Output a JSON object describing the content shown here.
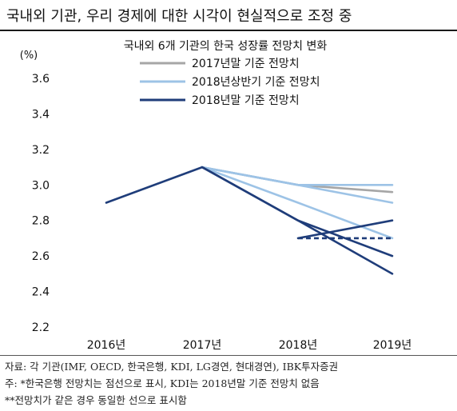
{
  "headline": "국내외 기관, 우리 경제에 대한 시각이 현실적으로 조정 중",
  "chart_data": {
    "type": "line",
    "title": "국내외 6개 기관의 한국 성장률 전망치 변화",
    "unit": "(%)",
    "categories": [
      "2016년",
      "2017년",
      "2018년",
      "2019년"
    ],
    "ylim": [
      2.2,
      3.6
    ],
    "yticks": [
      "2.2",
      "2.4",
      "2.6",
      "2.8",
      "3.0",
      "3.2",
      "3.4",
      "3.6"
    ],
    "grid": false,
    "legend_position": "top-right",
    "legend": [
      {
        "label": "2017년말 기준 전망치",
        "color": "#a6a6a6"
      },
      {
        "label": "2018년상반기 기준 전망치",
        "color": "#9dc3e6"
      },
      {
        "label": "2018년말 기준 전망치",
        "color": "#1f3d7a"
      }
    ],
    "series": [
      {
        "group": "2017년말 기준 전망치",
        "values": [
          null,
          3.1,
          3.0,
          2.96
        ],
        "color": "#a6a6a6",
        "dashed": false
      },
      {
        "group": "2018년상반기 기준 전망치",
        "values": [
          null,
          3.1,
          3.0,
          3.0
        ],
        "color": "#9dc3e6",
        "dashed": false
      },
      {
        "group": "2018년상반기 기준 전망치",
        "values": [
          null,
          3.1,
          3.0,
          2.9
        ],
        "color": "#9dc3e6",
        "dashed": false
      },
      {
        "group": "2018년상반기 기준 전망치",
        "values": [
          null,
          3.1,
          2.9,
          2.7
        ],
        "color": "#9dc3e6",
        "dashed": false
      },
      {
        "group": "2018년말 기준 전망치",
        "values": [
          2.9,
          3.1,
          2.8,
          2.5
        ],
        "color": "#1f3d7a",
        "dashed": false
      },
      {
        "group": "2018년말 기준 전망치",
        "values": [
          null,
          3.1,
          2.8,
          2.6
        ],
        "color": "#1f3d7a",
        "dashed": false
      },
      {
        "group": "2018년말 기준 전망치",
        "values": [
          null,
          null,
          2.7,
          2.8
        ],
        "color": "#1f3d7a",
        "dashed": false
      },
      {
        "group": "2018년말 기준 전망치",
        "values": [
          null,
          null,
          2.7,
          2.7
        ],
        "color": "#1f3d7a",
        "dashed": true
      }
    ]
  },
  "notes": [
    "자료: 각 기관(IMF, OECD, 한국은행, KDI, LG경연, 현대경연), IBK투자증권",
    "주: *한국은행 전망치는 점선으로 표시, KDI는 2018년말 기준 전망치 없음",
    "**전망치가 같은 경우 동일한 선으로 표시함"
  ]
}
